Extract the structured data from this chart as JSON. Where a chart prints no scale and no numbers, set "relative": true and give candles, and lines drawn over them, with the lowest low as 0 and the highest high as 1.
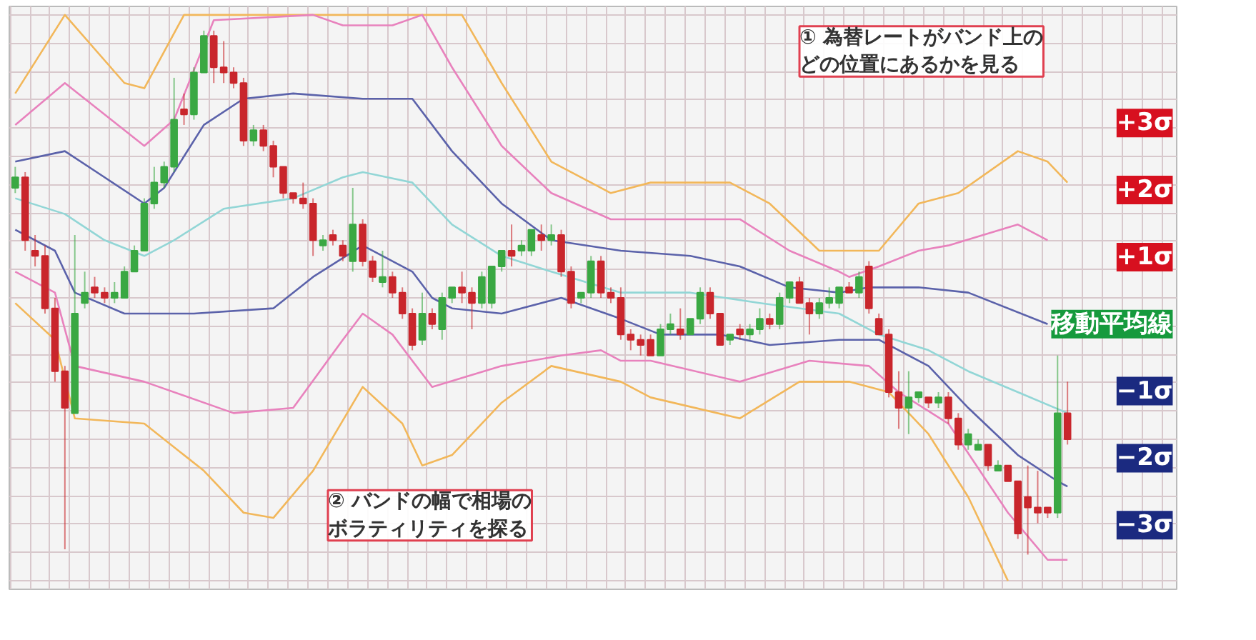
{
  "chart_data": {
    "type": "candlestick",
    "relative": true,
    "grid": true,
    "tick_labels": false,
    "categories": [
      null,
      null,
      null,
      null,
      null,
      null,
      null,
      null,
      null,
      null,
      null,
      null,
      null,
      null,
      null,
      null,
      null,
      null,
      null,
      null,
      null,
      null,
      null,
      null,
      null,
      null,
      null,
      null,
      null,
      null,
      null,
      null,
      null,
      null,
      null,
      null,
      null,
      null,
      null,
      null,
      null,
      null,
      null,
      null,
      null,
      null,
      null,
      null,
      null,
      null,
      null,
      null,
      null,
      null,
      null,
      null,
      null,
      null,
      null,
      null,
      null,
      null,
      null,
      null,
      null,
      null,
      null,
      null,
      null,
      null,
      null,
      null,
      null,
      null,
      null,
      null,
      null,
      null,
      null,
      null,
      null,
      null,
      null,
      null,
      null,
      null,
      null,
      null,
      null,
      null,
      null,
      null,
      null,
      null,
      null,
      null,
      null,
      null,
      null,
      null,
      null,
      null,
      null,
      null,
      null,
      null,
      null
    ],
    "ohlc": [
      [
        0.7,
        0.74,
        0.69,
        0.72
      ],
      [
        0.72,
        0.73,
        0.58,
        0.6
      ],
      [
        0.58,
        0.61,
        0.55,
        0.57
      ],
      [
        0.57,
        0.59,
        0.46,
        0.47
      ],
      [
        0.47,
        0.49,
        0.33,
        0.35
      ],
      [
        0.35,
        0.36,
        0.01,
        0.28
      ],
      [
        0.27,
        0.61,
        0.27,
        0.46
      ],
      [
        0.48,
        0.54,
        0.47,
        0.5
      ],
      [
        0.51,
        0.53,
        0.49,
        0.5
      ],
      [
        0.5,
        0.51,
        0.48,
        0.49
      ],
      [
        0.49,
        0.52,
        0.48,
        0.5
      ],
      [
        0.49,
        0.55,
        0.49,
        0.54
      ],
      [
        0.54,
        0.59,
        0.54,
        0.58
      ],
      [
        0.58,
        0.68,
        0.58,
        0.67
      ],
      [
        0.67,
        0.74,
        0.66,
        0.71
      ],
      [
        0.71,
        0.75,
        0.7,
        0.74
      ],
      [
        0.74,
        0.91,
        0.73,
        0.83
      ],
      [
        0.85,
        0.88,
        0.82,
        0.84
      ],
      [
        0.84,
        0.93,
        0.83,
        0.92
      ],
      [
        0.92,
        1.0,
        0.92,
        0.99
      ],
      [
        0.99,
        1.0,
        0.9,
        0.93
      ],
      [
        0.93,
        0.98,
        0.9,
        0.92
      ],
      [
        0.92,
        0.93,
        0.89,
        0.9
      ],
      [
        0.9,
        0.91,
        0.78,
        0.79
      ],
      [
        0.79,
        0.82,
        0.78,
        0.81
      ],
      [
        0.81,
        0.82,
        0.77,
        0.78
      ],
      [
        0.78,
        0.79,
        0.72,
        0.74
      ],
      [
        0.74,
        0.74,
        0.68,
        0.69
      ],
      [
        0.69,
        0.69,
        0.67,
        0.68
      ],
      [
        0.68,
        0.71,
        0.66,
        0.67
      ],
      [
        0.67,
        0.68,
        0.57,
        0.6
      ],
      [
        0.59,
        0.61,
        0.58,
        0.6
      ],
      [
        0.61,
        0.62,
        0.59,
        0.6
      ],
      [
        0.59,
        0.6,
        0.56,
        0.57
      ],
      [
        0.56,
        0.7,
        0.54,
        0.63
      ],
      [
        0.63,
        0.64,
        0.55,
        0.56
      ],
      [
        0.56,
        0.57,
        0.52,
        0.53
      ],
      [
        0.52,
        0.58,
        0.51,
        0.53
      ],
      [
        0.53,
        0.54,
        0.49,
        0.5
      ],
      [
        0.5,
        0.51,
        0.45,
        0.46
      ],
      [
        0.46,
        0.47,
        0.39,
        0.4
      ],
      [
        0.41,
        0.5,
        0.4,
        0.46
      ],
      [
        0.46,
        0.47,
        0.43,
        0.44
      ],
      [
        0.43,
        0.5,
        0.41,
        0.49
      ],
      [
        0.49,
        0.51,
        0.48,
        0.51
      ],
      [
        0.51,
        0.54,
        0.48,
        0.5
      ],
      [
        0.5,
        0.51,
        0.43,
        0.48
      ],
      [
        0.48,
        0.54,
        0.47,
        0.53
      ],
      [
        0.48,
        0.55,
        0.47,
        0.55
      ],
      [
        0.55,
        0.58,
        0.54,
        0.58
      ],
      [
        0.58,
        0.63,
        0.55,
        0.57
      ],
      [
        0.58,
        0.6,
        0.57,
        0.59
      ],
      [
        0.58,
        0.62,
        0.57,
        0.62
      ],
      [
        0.61,
        0.63,
        0.58,
        0.6
      ],
      [
        0.6,
        0.63,
        0.59,
        0.61
      ],
      [
        0.61,
        0.62,
        0.53,
        0.54
      ],
      [
        0.54,
        0.55,
        0.47,
        0.48
      ],
      [
        0.49,
        0.5,
        0.48,
        0.5
      ],
      [
        0.5,
        0.57,
        0.49,
        0.56
      ],
      [
        0.56,
        0.57,
        0.49,
        0.5
      ],
      [
        0.5,
        0.51,
        0.48,
        0.49
      ],
      [
        0.49,
        0.51,
        0.41,
        0.42
      ],
      [
        0.42,
        0.43,
        0.39,
        0.41
      ],
      [
        0.41,
        0.42,
        0.38,
        0.4
      ],
      [
        0.41,
        0.42,
        0.38,
        0.38
      ],
      [
        0.38,
        0.44,
        0.38,
        0.43
      ],
      [
        0.43,
        0.46,
        0.42,
        0.44
      ],
      [
        0.43,
        0.47,
        0.41,
        0.42
      ],
      [
        0.42,
        0.45,
        0.42,
        0.45
      ],
      [
        0.45,
        0.51,
        0.44,
        0.5
      ],
      [
        0.5,
        0.51,
        0.45,
        0.46
      ],
      [
        0.46,
        0.46,
        0.4,
        0.4
      ],
      [
        0.41,
        0.42,
        0.4,
        0.42
      ],
      [
        0.43,
        0.44,
        0.41,
        0.42
      ],
      [
        0.42,
        0.44,
        0.41,
        0.43
      ],
      [
        0.43,
        0.47,
        0.42,
        0.45
      ],
      [
        0.45,
        0.46,
        0.43,
        0.44
      ],
      [
        0.44,
        0.5,
        0.43,
        0.49
      ],
      [
        0.49,
        0.52,
        0.48,
        0.52
      ],
      [
        0.52,
        0.53,
        0.48,
        0.48
      ],
      [
        0.48,
        0.49,
        0.42,
        0.46
      ],
      [
        0.46,
        0.49,
        0.45,
        0.48
      ],
      [
        0.48,
        0.51,
        0.47,
        0.49
      ],
      [
        0.48,
        0.51,
        0.47,
        0.51
      ],
      [
        0.51,
        0.52,
        0.5,
        0.5
      ],
      [
        0.5,
        0.54,
        0.49,
        0.53
      ],
      [
        0.55,
        0.56,
        0.46,
        0.47
      ],
      [
        0.45,
        0.46,
        0.42,
        0.42
      ],
      [
        0.42,
        0.43,
        0.3,
        0.31
      ],
      [
        0.31,
        0.35,
        0.24,
        0.28
      ],
      [
        0.28,
        0.35,
        0.23,
        0.3
      ],
      [
        0.3,
        0.31,
        0.29,
        0.31
      ],
      [
        0.3,
        0.3,
        0.28,
        0.29
      ],
      [
        0.29,
        0.31,
        0.28,
        0.3
      ],
      [
        0.3,
        0.31,
        0.25,
        0.26
      ],
      [
        0.26,
        0.27,
        0.2,
        0.21
      ],
      [
        0.21,
        0.24,
        0.2,
        0.23
      ],
      [
        0.2,
        0.22,
        0.2,
        0.21
      ],
      [
        0.21,
        0.21,
        0.16,
        0.17
      ],
      [
        0.16,
        0.18,
        0.16,
        0.17
      ],
      [
        0.17,
        0.17,
        0.14,
        0.14
      ],
      [
        0.14,
        0.14,
        0.03,
        0.04
      ],
      [
        0.11,
        0.17,
        0.0,
        0.09
      ],
      [
        0.09,
        0.16,
        0.06,
        0.08
      ],
      [
        0.09,
        0.09,
        0.07,
        0.08
      ],
      [
        0.08,
        0.38,
        0.07,
        0.27
      ],
      [
        0.27,
        0.33,
        0.21,
        0.22
      ]
    ],
    "series": [
      {
        "name": "+3σ",
        "type": "line",
        "color": "#f2b75a",
        "values": [
          0.88,
          null,
          null,
          null,
          null,
          1.03,
          null,
          null,
          null,
          null,
          null,
          0.9,
          null,
          0.89,
          null,
          null,
          null,
          1.03,
          null,
          null,
          null,
          null,
          null,
          null,
          null,
          null,
          null,
          null,
          null,
          null,
          null,
          null,
          null,
          null,
          null,
          null,
          null,
          null,
          null,
          null,
          null,
          null,
          null,
          null,
          null,
          1.03,
          null,
          null,
          null,
          0.9,
          null,
          null,
          null,
          null,
          0.75,
          null,
          null,
          null,
          null,
          null,
          0.69,
          null,
          null,
          null,
          0.71,
          null,
          null,
          null,
          null,
          null,
          null,
          null,
          0.71,
          null,
          null,
          null,
          0.67,
          null,
          null,
          null,
          null,
          0.58,
          null,
          null,
          null,
          null,
          null,
          0.58,
          null,
          null,
          null,
          0.67,
          null,
          null,
          null,
          0.69,
          null,
          null,
          null,
          null,
          null,
          0.77,
          null,
          null,
          0.75,
          null,
          0.71
        ]
      },
      {
        "name": "+2σ",
        "type": "line",
        "color": "#e882bd",
        "values": [
          0.82,
          null,
          null,
          null,
          null,
          0.9,
          null,
          null,
          null,
          null,
          null,
          null,
          null,
          0.78,
          null,
          null,
          0.83,
          null,
          null,
          null,
          1.02,
          null,
          null,
          null,
          null,
          null,
          null,
          null,
          null,
          null,
          1.03,
          null,
          null,
          1.01,
          null,
          null,
          null,
          null,
          1.01,
          null,
          null,
          1.03,
          null,
          null,
          0.93,
          null,
          null,
          null,
          null,
          0.78,
          null,
          null,
          null,
          null,
          0.69,
          null,
          null,
          null,
          null,
          null,
          0.64,
          null,
          null,
          null,
          0.64,
          null,
          null,
          null,
          null,
          null,
          null,
          null,
          null,
          0.64,
          null,
          null,
          null,
          null,
          0.58,
          null,
          null,
          null,
          null,
          0.54,
          0.53,
          null,
          null,
          0.55,
          null,
          null,
          null,
          0.58,
          null,
          null,
          0.59,
          null,
          null,
          null,
          null,
          null,
          null,
          0.63,
          null,
          null,
          0.6,
          null,
          null
        ]
      },
      {
        "name": "+1σ",
        "type": "line",
        "color": "#5b62aa",
        "values": [
          0.75,
          null,
          null,
          null,
          null,
          0.77,
          null,
          null,
          null,
          0.72,
          null,
          null,
          null,
          0.67,
          null,
          0.7,
          null,
          null,
          null,
          0.82,
          null,
          null,
          null,
          0.87,
          null,
          null,
          null,
          null,
          0.88,
          null,
          null,
          null,
          null,
          null,
          null,
          0.87,
          null,
          null,
          null,
          null,
          0.87,
          null,
          null,
          null,
          0.77,
          null,
          null,
          null,
          null,
          0.67,
          null,
          null,
          null,
          null,
          0.6,
          null,
          null,
          null,
          null,
          null,
          null,
          0.58,
          null,
          null,
          null,
          null,
          null,
          null,
          0.57,
          null,
          null,
          null,
          null,
          0.55,
          null,
          null,
          null,
          null,
          0.51,
          null,
          null,
          null,
          null,
          0.5,
          null,
          null,
          0.51,
          null,
          null,
          null,
          null,
          0.51,
          null,
          null,
          null,
          null,
          0.5,
          null,
          null,
          null,
          null,
          null,
          null,
          null,
          0.44,
          null,
          null
        ]
      },
      {
        "name": "移動平均線",
        "type": "line",
        "color": "#92d6d6",
        "values": [
          0.68,
          null,
          null,
          null,
          null,
          0.65,
          null,
          null,
          null,
          0.6,
          null,
          null,
          null,
          0.57,
          null,
          null,
          0.6,
          null,
          null,
          null,
          null,
          0.66,
          null,
          null,
          null,
          null,
          null,
          null,
          0.68,
          null,
          null,
          null,
          null,
          0.72,
          null,
          0.73,
          null,
          null,
          null,
          null,
          0.71,
          null,
          null,
          null,
          0.63,
          null,
          null,
          null,
          null,
          0.57,
          null,
          null,
          null,
          null,
          0.54,
          null,
          null,
          null,
          null,
          null,
          null,
          0.5,
          null,
          null,
          null,
          null,
          null,
          null,
          0.5,
          null,
          null,
          null,
          null,
          null,
          null,
          0.48,
          null,
          null,
          null,
          null,
          null,
          null,
          null,
          0.46,
          null,
          null,
          null,
          0.42,
          null,
          null,
          null,
          null,
          0.39,
          null,
          null,
          null,
          0.35,
          null,
          null,
          null,
          null,
          0.31,
          null,
          null,
          null,
          null,
          0.27
        ]
      },
      {
        "name": "−1σ",
        "type": "line",
        "color": "#5b62aa",
        "values": [
          0.62,
          null,
          null,
          null,
          0.58,
          null,
          0.5,
          null,
          null,
          null,
          null,
          0.46,
          null,
          null,
          null,
          null,
          null,
          null,
          0.46,
          null,
          null,
          null,
          null,
          null,
          null,
          null,
          0.47,
          null,
          null,
          null,
          0.53,
          null,
          null,
          null,
          null,
          0.59,
          null,
          null,
          null,
          null,
          0.54,
          null,
          0.49,
          null,
          0.47,
          null,
          null,
          null,
          null,
          0.46,
          null,
          null,
          null,
          null,
          null,
          0.49,
          null,
          null,
          null,
          null,
          null,
          0.45,
          null,
          null,
          null,
          0.42,
          null,
          null,
          null,
          null,
          null,
          0.42,
          null,
          null,
          null,
          null,
          0.4,
          null,
          null,
          null,
          null,
          null,
          null,
          0.41,
          null,
          null,
          null,
          0.41,
          null,
          null,
          null,
          null,
          0.36,
          null,
          null,
          null,
          0.28,
          null,
          null,
          null,
          null,
          0.19,
          null,
          null,
          null,
          0.14,
          0.13
        ]
      },
      {
        "name": "−2σ",
        "type": "line",
        "color": "#e882bd",
        "values": [
          0.54,
          null,
          null,
          null,
          0.5,
          null,
          0.36,
          null,
          null,
          null,
          null,
          null,
          null,
          0.33,
          null,
          null,
          null,
          null,
          null,
          null,
          null,
          null,
          0.27,
          null,
          null,
          null,
          null,
          null,
          0.28,
          null,
          null,
          null,
          null,
          0.41,
          null,
          0.46,
          null,
          null,
          0.42,
          null,
          null,
          null,
          0.32,
          null,
          null,
          null,
          null,
          null,
          null,
          0.36,
          null,
          null,
          null,
          null,
          null,
          0.38,
          null,
          null,
          null,
          0.39,
          null,
          0.37,
          null,
          null,
          0.37,
          null,
          null,
          null,
          null,
          null,
          null,
          null,
          null,
          0.33,
          null,
          null,
          null,
          null,
          null,
          null,
          0.37,
          null,
          null,
          null,
          null,
          null,
          0.36,
          null,
          null,
          0.31,
          null,
          null,
          null,
          null,
          0.25,
          null,
          null,
          null,
          null,
          null,
          0.08,
          null,
          null,
          null,
          -0.01,
          null,
          -0.01
        ]
      },
      {
        "name": "−3σ",
        "type": "line",
        "color": "#f2b75a",
        "values": [
          0.48,
          null,
          null,
          null,
          0.41,
          null,
          0.26,
          null,
          null,
          null,
          null,
          null,
          null,
          0.25,
          null,
          null,
          null,
          null,
          null,
          0.16,
          null,
          null,
          null,
          0.08,
          null,
          null,
          0.07,
          null,
          null,
          null,
          0.16,
          null,
          null,
          null,
          null,
          0.32,
          null,
          null,
          null,
          0.25,
          null,
          0.17,
          null,
          null,
          0.19,
          null,
          null,
          null,
          null,
          0.29,
          null,
          null,
          null,
          null,
          0.36,
          null,
          null,
          null,
          null,
          null,
          null,
          0.33,
          null,
          null,
          0.3,
          null,
          null,
          null,
          null,
          null,
          null,
          null,
          null,
          0.26,
          null,
          null,
          null,
          null,
          null,
          0.33,
          null,
          null,
          null,
          null,
          0.33,
          null,
          null,
          null,
          0.31,
          null,
          null,
          null,
          0.23,
          null,
          null,
          null,
          0.11,
          null,
          null,
          null,
          -0.05,
          null,
          null,
          null,
          null,
          null,
          null
        ]
      }
    ],
    "annotations": [
      "① 為替レートがバンド上のどの位置にあるかを見る",
      "② バンドの幅で相場のボラティリティを探る"
    ]
  }
}
